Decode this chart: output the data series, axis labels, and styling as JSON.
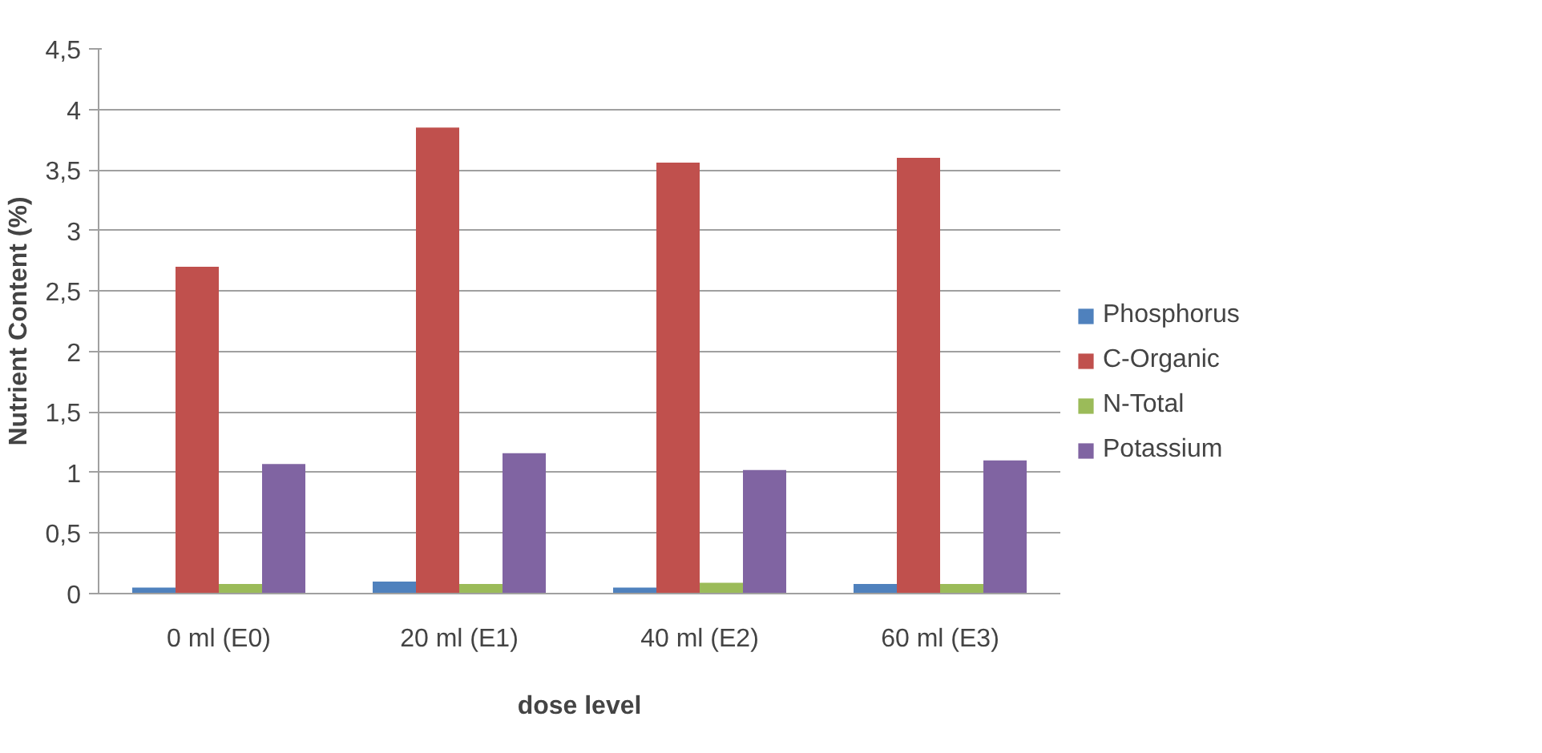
{
  "chart_data": {
    "type": "bar",
    "xlabel": "dose level",
    "ylabel": "Nutrient Content (%)",
    "categories": [
      "0 ml (E0)",
      "20 ml (E1)",
      "40 ml (E2)",
      "60 ml (E3)"
    ],
    "series": [
      {
        "name": "Phosphorus",
        "color": "#4f81bd",
        "values": [
          0.05,
          0.1,
          0.05,
          0.08
        ]
      },
      {
        "name": "C-Organic",
        "color": "#c0504d",
        "values": [
          2.7,
          3.85,
          3.56,
          3.6
        ]
      },
      {
        "name": "N-Total",
        "color": "#9bbb59",
        "values": [
          0.08,
          0.08,
          0.09,
          0.08
        ]
      },
      {
        "name": "Potassium",
        "color": "#8064a2",
        "values": [
          1.07,
          1.16,
          1.02,
          1.1
        ]
      }
    ],
    "ylim": [
      0,
      4.5
    ],
    "yticks": [
      0,
      {
        "value": 0.5,
        "label": "0,5"
      },
      1,
      {
        "value": 1.5,
        "label": "1,5"
      },
      2,
      {
        "value": 2.5,
        "label": "2,5"
      },
      3,
      {
        "value": 3.5,
        "label": "3,5"
      },
      4,
      {
        "value": 4.5,
        "label": "4,5"
      }
    ],
    "grid": "y",
    "legend": "right"
  }
}
